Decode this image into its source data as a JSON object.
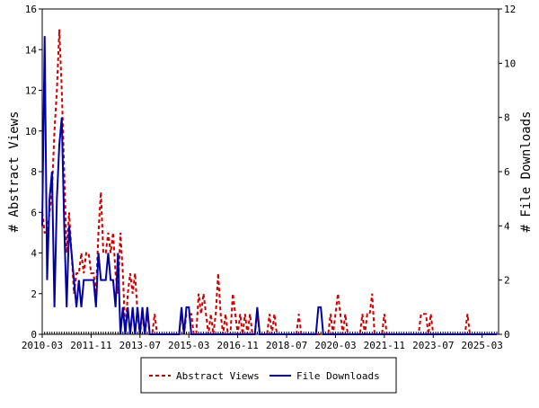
{
  "chart_data": {
    "type": "line",
    "x": [
      "2010-03",
      "2010-04",
      "2010-05",
      "2010-06",
      "2010-07",
      "2010-08",
      "2010-09",
      "2010-10",
      "2010-11",
      "2010-12",
      "2011-01",
      "2011-02",
      "2011-03",
      "2011-04",
      "2011-05",
      "2011-06",
      "2011-07",
      "2011-08",
      "2011-09",
      "2011-10",
      "2011-11",
      "2011-12",
      "2012-01",
      "2012-02",
      "2012-03",
      "2012-04",
      "2012-05",
      "2012-06",
      "2012-07",
      "2012-08",
      "2012-09",
      "2012-10",
      "2012-11",
      "2012-12",
      "2013-01",
      "2013-02",
      "2013-03",
      "2013-04",
      "2013-05",
      "2013-06",
      "2013-07",
      "2013-08",
      "2013-09",
      "2013-10",
      "2013-11",
      "2013-12",
      "2014-01",
      "2014-02",
      "2014-03",
      "2014-04",
      "2014-05",
      "2014-06",
      "2014-07",
      "2014-08",
      "2014-09",
      "2014-10",
      "2014-11",
      "2014-12",
      "2015-01",
      "2015-02",
      "2015-03",
      "2015-04",
      "2015-05",
      "2015-06",
      "2015-07",
      "2015-08",
      "2015-09",
      "2015-10",
      "2015-11",
      "2015-12",
      "2016-01",
      "2016-02",
      "2016-03",
      "2016-04",
      "2016-05",
      "2016-06",
      "2016-07",
      "2016-08",
      "2016-09",
      "2016-10",
      "2016-11",
      "2016-12",
      "2017-01",
      "2017-02",
      "2017-03",
      "2017-04",
      "2017-05",
      "2017-06",
      "2017-07",
      "2017-08",
      "2017-09",
      "2017-10",
      "2017-11",
      "2017-12",
      "2018-01",
      "2018-02",
      "2018-03",
      "2018-04",
      "2018-05",
      "2018-06",
      "2018-07",
      "2018-08",
      "2018-09",
      "2018-10",
      "2018-11",
      "2018-12",
      "2019-01",
      "2019-02",
      "2019-03",
      "2019-04",
      "2019-05",
      "2019-06",
      "2019-07",
      "2019-08",
      "2019-09",
      "2019-10",
      "2019-11",
      "2019-12",
      "2020-01",
      "2020-02",
      "2020-03",
      "2020-04",
      "2020-05",
      "2020-06",
      "2020-07",
      "2020-08",
      "2020-09",
      "2020-10",
      "2020-11",
      "2020-12",
      "2021-01",
      "2021-02",
      "2021-03",
      "2021-04",
      "2021-05",
      "2021-06",
      "2021-07",
      "2021-08",
      "2021-09",
      "2021-10",
      "2021-11",
      "2021-12",
      "2022-01",
      "2022-02",
      "2022-03",
      "2022-04",
      "2022-05",
      "2022-06",
      "2022-07",
      "2022-08",
      "2022-09",
      "2022-10",
      "2022-11",
      "2022-12",
      "2023-01",
      "2023-02",
      "2023-03",
      "2023-04",
      "2023-05",
      "2023-06",
      "2023-07",
      "2023-08",
      "2023-09",
      "2023-10",
      "2023-11",
      "2023-12",
      "2024-01",
      "2024-02",
      "2024-03",
      "2024-04",
      "2024-05",
      "2024-06",
      "2024-07",
      "2024-08",
      "2024-09",
      "2024-10",
      "2024-11",
      "2024-12",
      "2025-01",
      "2025-02",
      "2025-03",
      "2025-04",
      "2025-05",
      "2025-06",
      "2025-07",
      "2025-08",
      "2025-09"
    ],
    "series": [
      {
        "name": "Abstract Views",
        "color": "#cc0000",
        "dash": true,
        "axis": "y",
        "values": [
          6,
          5,
          5,
          6,
          7,
          10,
          12,
          15,
          12,
          8,
          4,
          6,
          4,
          2,
          3,
          3,
          4,
          3,
          4,
          4,
          3,
          3,
          2,
          5,
          7,
          4,
          4,
          5,
          4,
          5,
          3,
          2,
          5,
          3,
          0,
          2,
          3,
          2,
          3,
          1,
          0,
          1,
          0,
          1,
          0,
          0,
          1,
          0,
          0,
          0,
          0,
          0,
          0,
          0,
          0,
          0,
          0,
          1,
          0,
          1,
          1,
          1,
          0,
          0,
          2,
          1,
          2,
          1,
          0,
          1,
          0,
          1,
          3,
          1,
          0,
          1,
          0,
          0,
          2,
          1,
          0,
          1,
          0,
          1,
          0,
          1,
          0,
          0,
          1,
          0,
          0,
          0,
          0,
          1,
          0,
          1,
          0,
          0,
          0,
          0,
          0,
          0,
          0,
          0,
          0,
          1,
          0,
          0,
          0,
          0,
          0,
          0,
          0,
          0,
          0,
          0,
          0,
          0,
          1,
          0,
          1,
          2,
          1,
          0,
          1,
          0,
          0,
          0,
          0,
          0,
          0,
          1,
          0,
          1,
          1,
          2,
          0,
          0,
          0,
          0,
          1,
          0,
          0,
          0,
          0,
          0,
          0,
          0,
          0,
          0,
          0,
          0,
          0,
          0,
          0,
          1,
          1,
          1,
          0,
          1,
          0,
          0,
          0,
          0,
          0,
          0,
          0,
          0,
          0,
          0,
          0,
          0,
          0,
          0,
          1,
          0,
          0,
          0,
          0,
          0,
          0,
          0,
          0,
          0,
          0,
          0,
          0
        ]
      },
      {
        "name": "File Downloads",
        "color": "#0000aa",
        "dash": false,
        "axis": "y2",
        "values": [
          4,
          11,
          2,
          5,
          6,
          1,
          5,
          7,
          8,
          4,
          1,
          4,
          3,
          2,
          1,
          2,
          1,
          2,
          2,
          2,
          2,
          2,
          1,
          3,
          2,
          2,
          2,
          3,
          2,
          2,
          1,
          3,
          0,
          1,
          0,
          1,
          0,
          1,
          0,
          1,
          0,
          1,
          0,
          1,
          0,
          0,
          0,
          0,
          0,
          0,
          0,
          0,
          0,
          0,
          0,
          0,
          0,
          1,
          0,
          1,
          1,
          0,
          0,
          0,
          0,
          0,
          0,
          0,
          0,
          0,
          0,
          0,
          0,
          0,
          0,
          0,
          0,
          0,
          0,
          0,
          0,
          0,
          0,
          0,
          0,
          0,
          0,
          0,
          1,
          0,
          0,
          0,
          0,
          0,
          0,
          0,
          0,
          0,
          0,
          0,
          0,
          0,
          0,
          0,
          0,
          0,
          0,
          0,
          0,
          0,
          0,
          0,
          0,
          1,
          1,
          0,
          0,
          0,
          0,
          0,
          0,
          0,
          0,
          0,
          0,
          0,
          0,
          0,
          0,
          0,
          0,
          0,
          0,
          0,
          0,
          0,
          0,
          0,
          0,
          0,
          0,
          0,
          0,
          0,
          0,
          0,
          0,
          0,
          0,
          0,
          0,
          0,
          0,
          0,
          0,
          0,
          0,
          0,
          0,
          0,
          0,
          0,
          0,
          0,
          0,
          0,
          0,
          0,
          0,
          0,
          0,
          0,
          0,
          0,
          0,
          0,
          0,
          0,
          0,
          0,
          0,
          0,
          0,
          0,
          0,
          0,
          0
        ]
      }
    ],
    "ylabel": "# Abstract Views",
    "y2label": "# File Downloads",
    "xlim": [
      "2010-03",
      "2025-09"
    ],
    "xticks": [
      "2010-03",
      "2011-11",
      "2013-07",
      "2015-03",
      "2016-11",
      "2018-07",
      "2020-03",
      "2021-11",
      "2023-07",
      "2025-03"
    ],
    "ylim": [
      0,
      16
    ],
    "yticks": [
      0,
      2,
      4,
      6,
      8,
      10,
      12,
      14,
      16
    ],
    "y2lim": [
      0,
      12
    ],
    "y2ticks": [
      0,
      2,
      4,
      6,
      8,
      10,
      12
    ]
  }
}
